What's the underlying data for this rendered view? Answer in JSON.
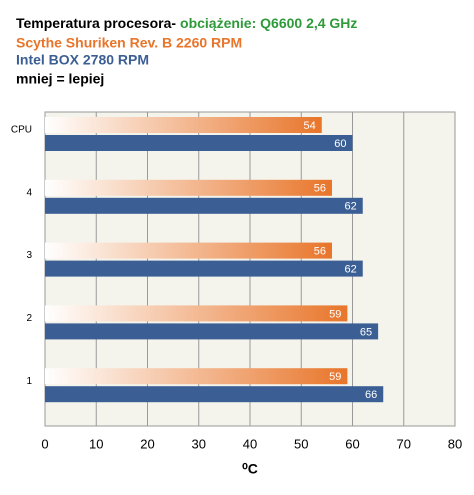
{
  "chart_data": {
    "type": "hbar",
    "title": "Temperatura procesora-",
    "subtitle": "obciążenie: Q6600 2,4 GHz",
    "note": "mniej = lepiej",
    "x_label": "⁰C",
    "categories": [
      "CPU",
      "4",
      "3",
      "2",
      "1"
    ],
    "series": [
      {
        "name": "Scythe Shuriken Rev. B 2260  RPM",
        "color": "#e8752a",
        "values": [
          54,
          56,
          56,
          59,
          59
        ]
      },
      {
        "name": "Intel BOX 2780  RPM",
        "color": "#3b5f94",
        "values": [
          60,
          62,
          62,
          65,
          66
        ]
      }
    ],
    "xlim": [
      0,
      80
    ],
    "xticks": [
      0,
      10,
      20,
      30,
      40,
      50,
      60,
      70,
      80
    ],
    "grid": true
  }
}
